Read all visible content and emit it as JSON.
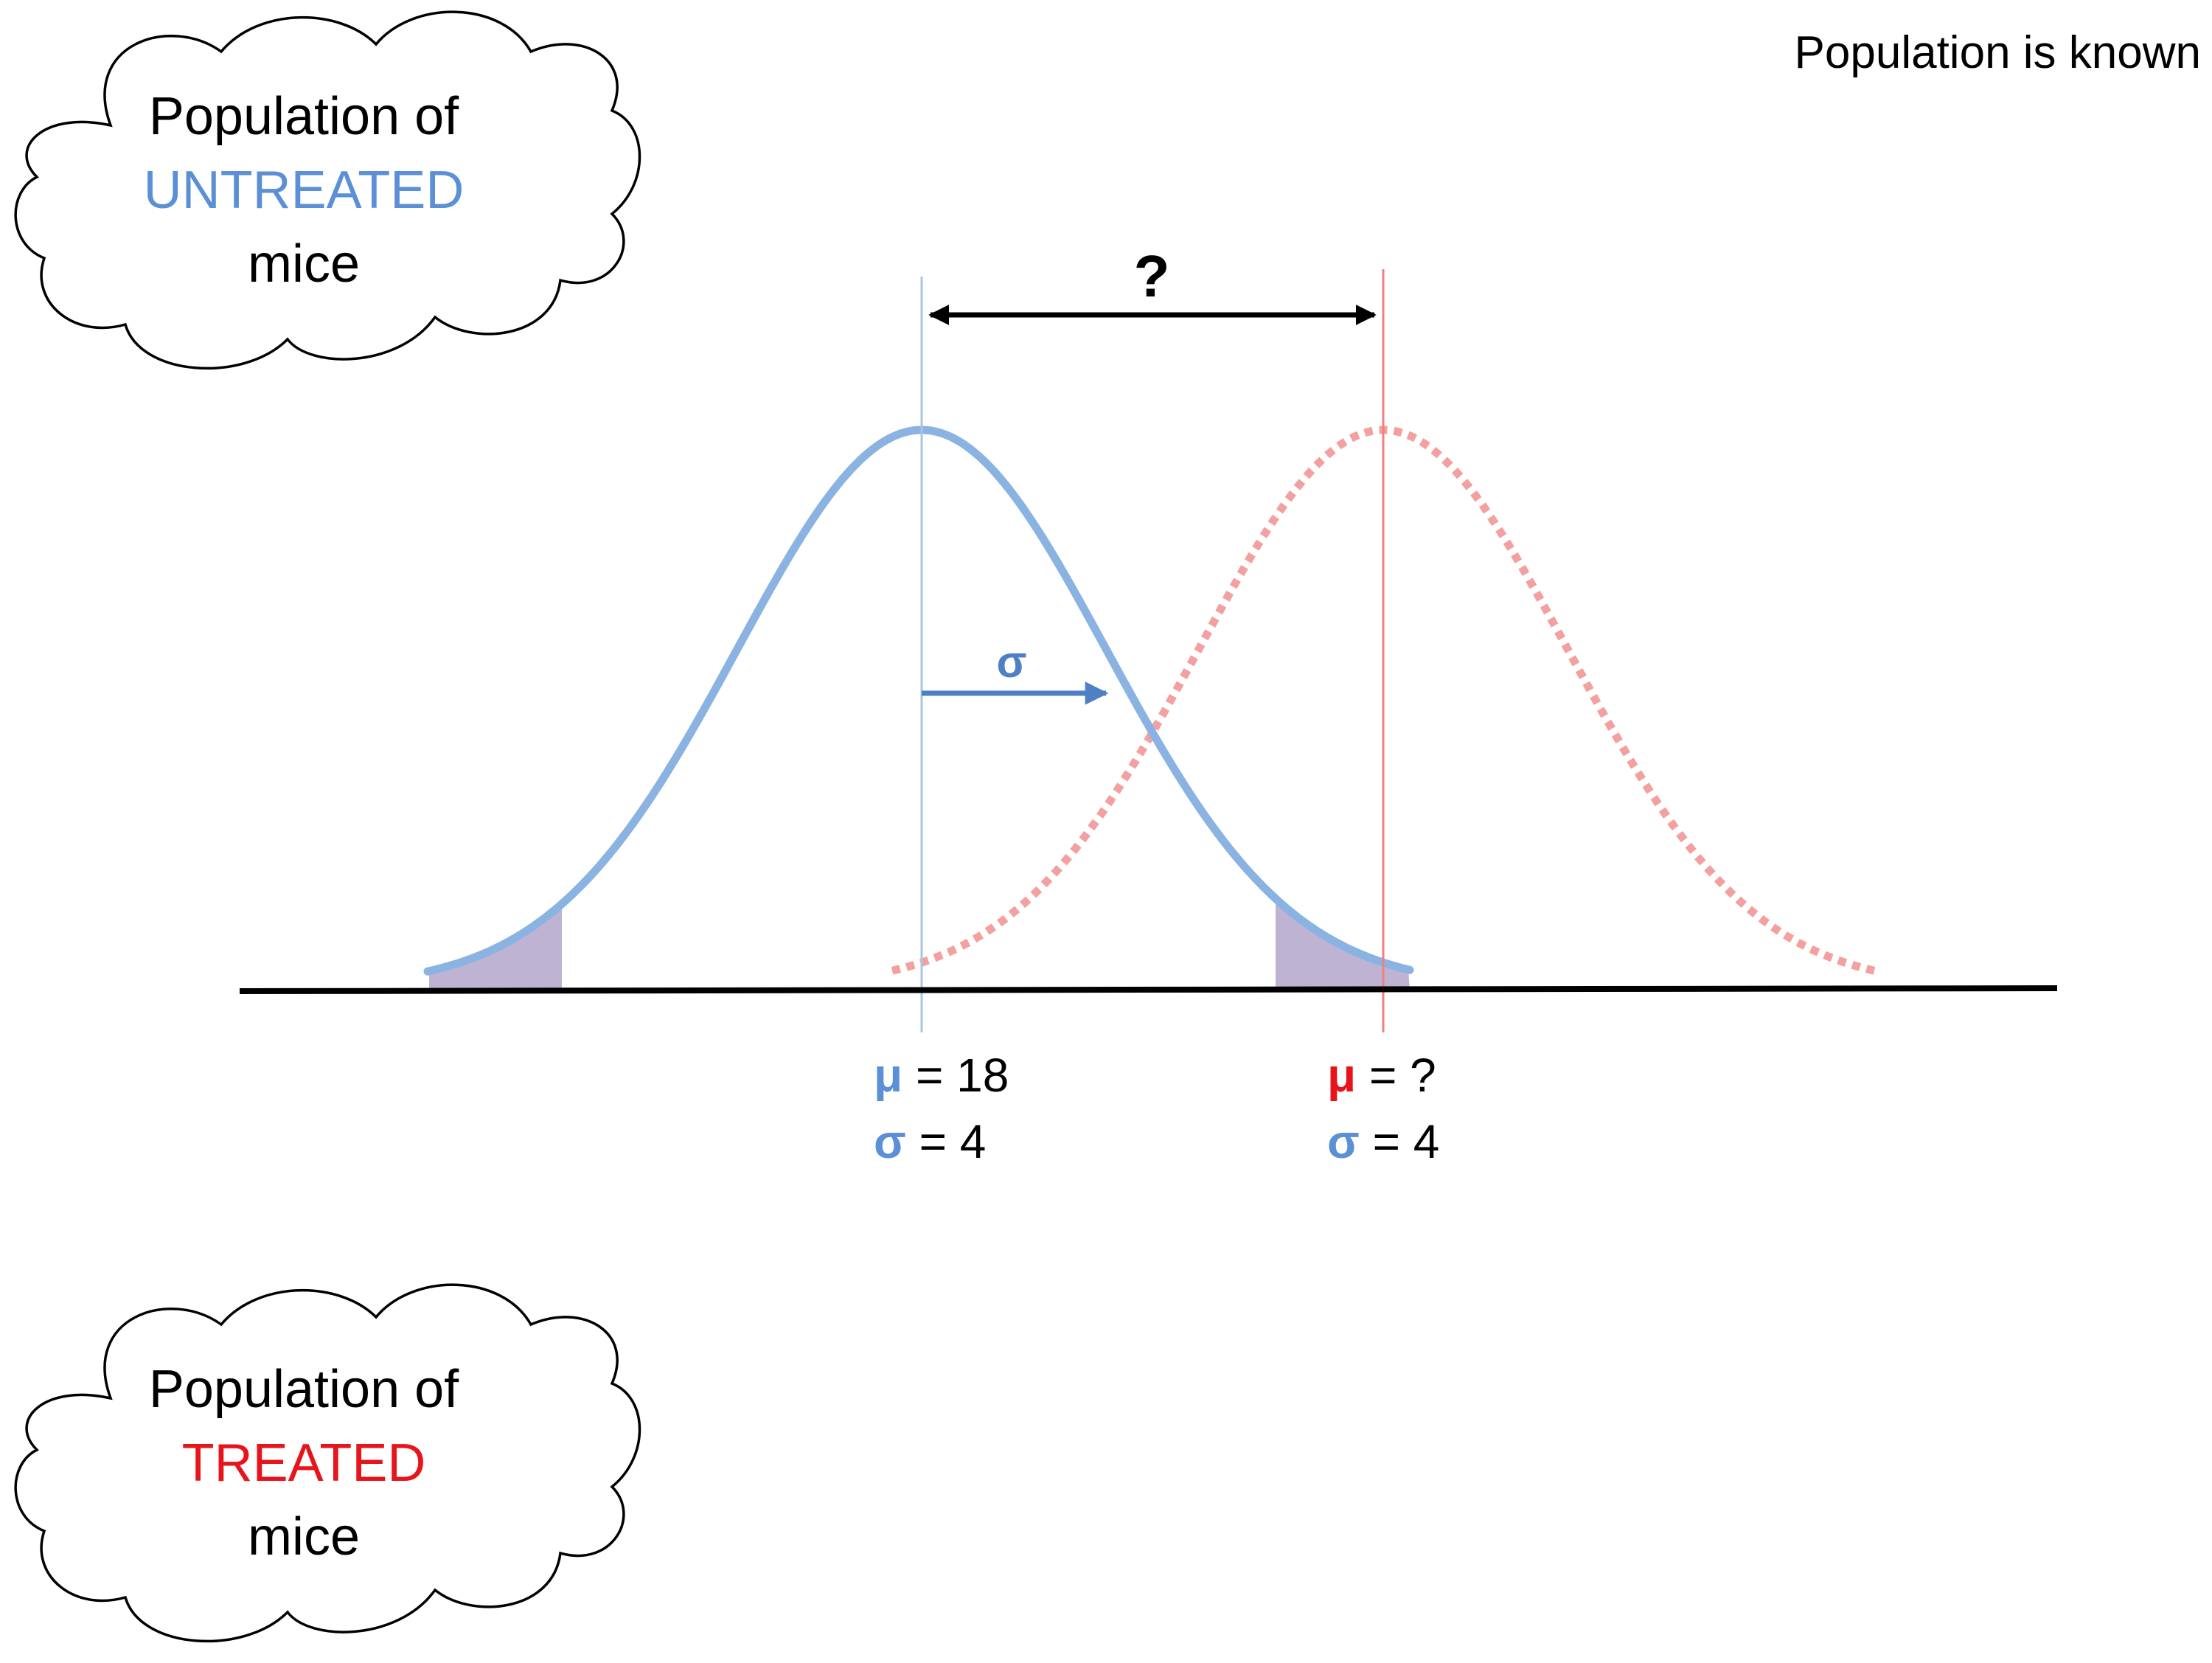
{
  "header": {
    "note": "Population is known"
  },
  "clouds": {
    "untreated": {
      "line1": "Population of",
      "group": "UNTREATED",
      "line3": "mice"
    },
    "treated": {
      "line1": "Population of",
      "group": "TREATED",
      "line3": "mice"
    }
  },
  "diagram": {
    "difference_label": "?",
    "sigma_arrow_label": "σ",
    "untreated": {
      "mu_symbol": "μ",
      "mu_text": " = 18",
      "sigma_symbol": "σ",
      "sigma_text": " = 4"
    },
    "treated": {
      "mu_symbol": "μ",
      "mu_text": " = ?",
      "sigma_symbol": "σ",
      "sigma_text": " = 4"
    }
  },
  "colors": {
    "untreated": "#5b8fd6",
    "treated": "#e8141b",
    "untreated_curve": "#8bb3e2",
    "treated_curve": "#f2a0a0",
    "tail_fill": "#a899c4",
    "axis": "#000000"
  }
}
